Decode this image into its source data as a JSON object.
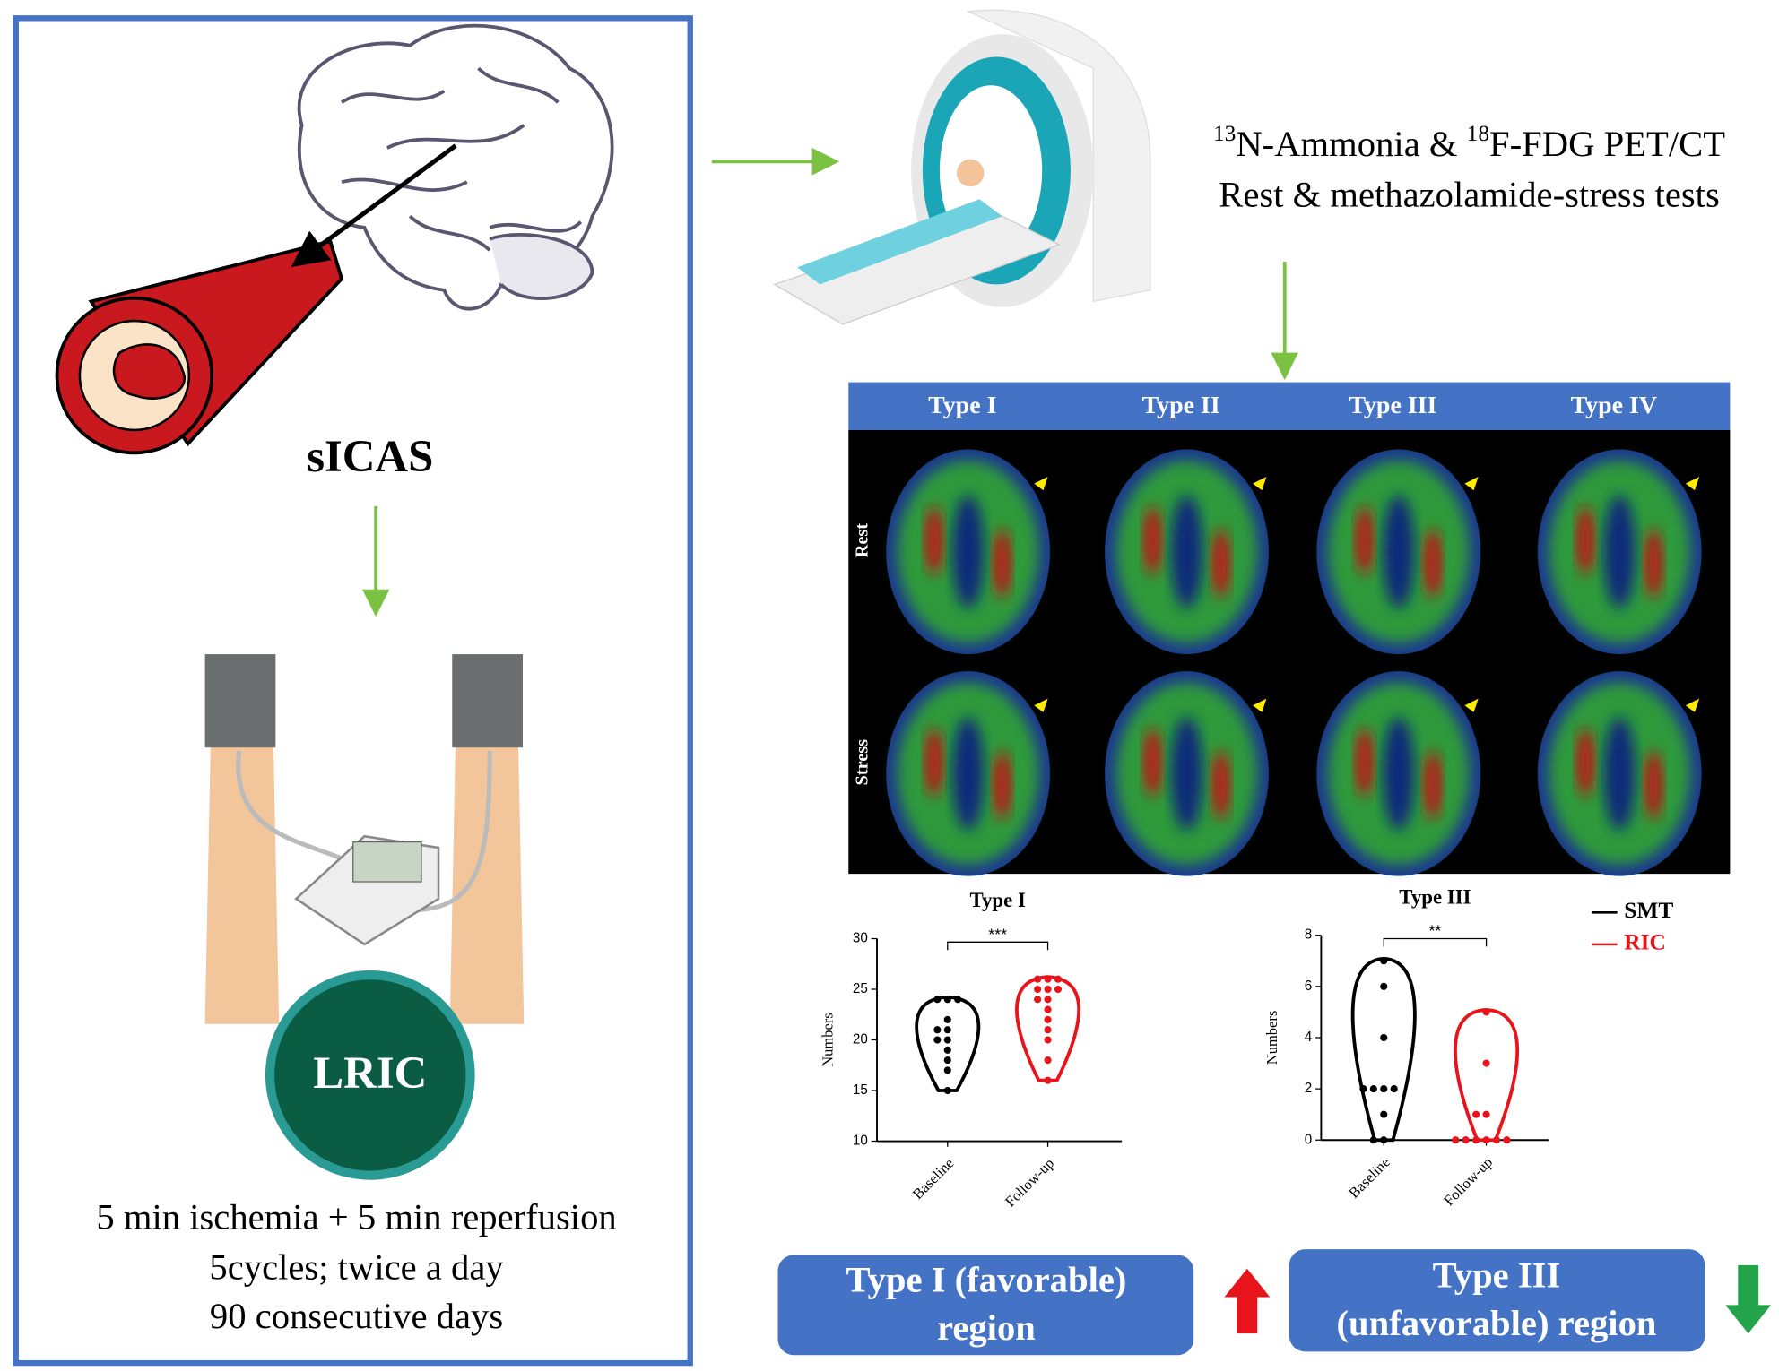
{
  "left_panel": {
    "condition": "sICAS",
    "treatment": "LRIC",
    "protocol": [
      "5 min ischemia +  5 min reperfusion",
      "5cycles; twice a day",
      "90 consecutive days"
    ]
  },
  "imaging": {
    "line1": {
      "sup1": "13",
      "text1": "N-Ammonia & ",
      "sup2": "18",
      "text2": "F-FDG PET/CT"
    },
    "line2": "Rest & methazolamide-stress tests"
  },
  "scan_grid": {
    "columns": [
      "Type I",
      "Type II",
      "Type III",
      "Type IV"
    ],
    "rows": [
      "Rest",
      "Stress"
    ]
  },
  "legend": [
    {
      "name": "SMT",
      "color": "#000000"
    },
    {
      "name": "RIC",
      "color": "#e8141b"
    }
  ],
  "plots": [
    {
      "title": "Type I",
      "ylabel": "Numbers",
      "categories": [
        "Baseline",
        "Follow-up"
      ],
      "significance": "***",
      "ylim": [
        10,
        30
      ],
      "yticks": [
        10,
        15,
        20,
        25,
        30
      ],
      "groups": [
        {
          "color": "#000000",
          "values": [
            24,
            24,
            24,
            22,
            21,
            21,
            20,
            20,
            19,
            18,
            17,
            15
          ]
        },
        {
          "color": "#e8141b",
          "values": [
            26,
            26,
            26,
            25,
            25,
            25,
            24,
            24,
            23,
            22,
            21,
            20,
            18,
            16
          ]
        }
      ]
    },
    {
      "title": "Type III",
      "ylabel": "Numbers",
      "categories": [
        "Baseline",
        "Follow-up"
      ],
      "significance": "**",
      "ylim": [
        0,
        8
      ],
      "yticks": [
        0,
        2,
        4,
        6,
        8
      ],
      "groups": [
        {
          "color": "#000000",
          "values": [
            7,
            6,
            4,
            2,
            2,
            2,
            2,
            1,
            0,
            0
          ]
        },
        {
          "color": "#e8141b",
          "values": [
            5,
            3,
            1,
            1,
            0,
            0,
            0,
            0,
            0,
            0
          ]
        }
      ]
    }
  ],
  "outcomes": [
    {
      "lines": [
        "Type I (favorable)",
        "region"
      ]
    },
    {
      "lines": [
        "Type III",
        "(unfavorable) region"
      ]
    }
  ]
}
